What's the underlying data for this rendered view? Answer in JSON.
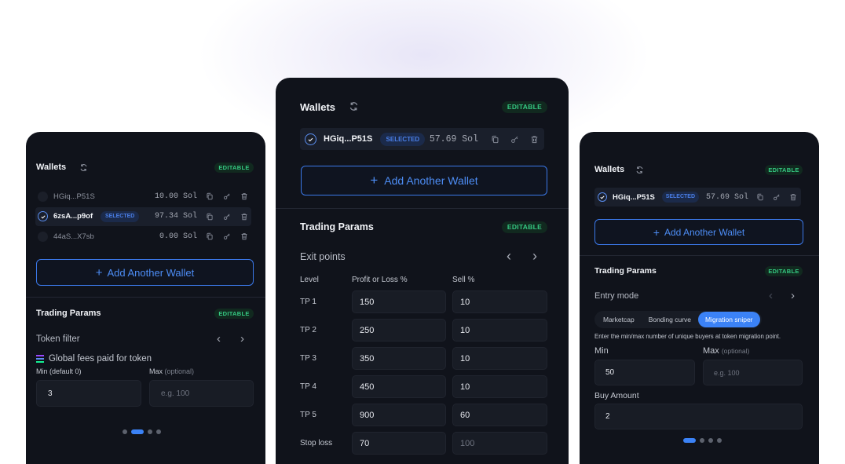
{
  "colors": {
    "accent": "#3b82f6",
    "editable": "#35c982",
    "card_bg": "#10131b"
  },
  "icons": {
    "refresh": "refresh-icon",
    "check": "check-icon",
    "copy": "copy-icon",
    "key": "key-icon",
    "trash": "trash-icon",
    "chev_left": "chevron-left-icon",
    "chev_right": "chevron-right-icon",
    "plus": "plus-icon",
    "fees": "solana-icon"
  },
  "left": {
    "wallets_title": "Wallets",
    "editable": "EDITABLE",
    "wallets": [
      {
        "name": "HGiq...P51S",
        "amount": "10.00 Sol",
        "selected": false
      },
      {
        "name": "6zsA...p9of",
        "amount": "97.34 Sol",
        "selected": true,
        "badge": "SELECTED"
      },
      {
        "name": "44aS...X7sb",
        "amount": "0.00 Sol",
        "selected": false
      }
    ],
    "add_wallet": "Add Another Wallet",
    "params_title": "Trading Params",
    "params_editable": "EDITABLE",
    "section": "Token filter",
    "filter_name": "Global fees paid for token",
    "min_label": "Min (default 0)",
    "max_label": "Max",
    "max_optional": "(optional)",
    "min_value": "3",
    "max_placeholder": "e.g. 100",
    "pager": {
      "pages": 4,
      "active": 2
    }
  },
  "center": {
    "wallets_title": "Wallets",
    "editable": "EDITABLE",
    "wallet": {
      "name": "HGiq...P51S",
      "badge": "SELECTED",
      "amount": "57.69 Sol"
    },
    "add_wallet": "Add Another Wallet",
    "params_title": "Trading Params",
    "params_editable": "EDITABLE",
    "section": "Exit points",
    "headers": [
      "Level",
      "Profit or Loss %",
      "Sell %"
    ],
    "rows": [
      {
        "level": "TP 1",
        "pl": "150",
        "sell": "10"
      },
      {
        "level": "TP 2",
        "pl": "250",
        "sell": "10"
      },
      {
        "level": "TP 3",
        "pl": "350",
        "sell": "10"
      },
      {
        "level": "TP 4",
        "pl": "450",
        "sell": "10"
      },
      {
        "level": "TP 5",
        "pl": "900",
        "sell": "60"
      },
      {
        "level": "Stop loss",
        "pl": "70",
        "sell_placeholder": "100"
      }
    ]
  },
  "right": {
    "wallets_title": "Wallets",
    "editable": "EDITABLE",
    "wallet": {
      "name": "HGiq...P51S",
      "badge": "SELECTED",
      "amount": "57.69 Sol"
    },
    "add_wallet": "Add Another Wallet",
    "params_title": "Trading Params",
    "params_editable": "EDITABLE",
    "section": "Entry mode",
    "modes": [
      "Marketcap",
      "Bonding curve",
      "Migration sniper"
    ],
    "active_mode": "Migration sniper",
    "hint": "Enter the min/max number of unique buyers at token migration point.",
    "min_label": "Min",
    "max_label": "Max",
    "max_optional": "(optional)",
    "min_value": "50",
    "max_placeholder": "e.g. 100",
    "buy_label": "Buy Amount",
    "buy_value": "2",
    "pager": {
      "pages": 4,
      "active": 1
    }
  }
}
